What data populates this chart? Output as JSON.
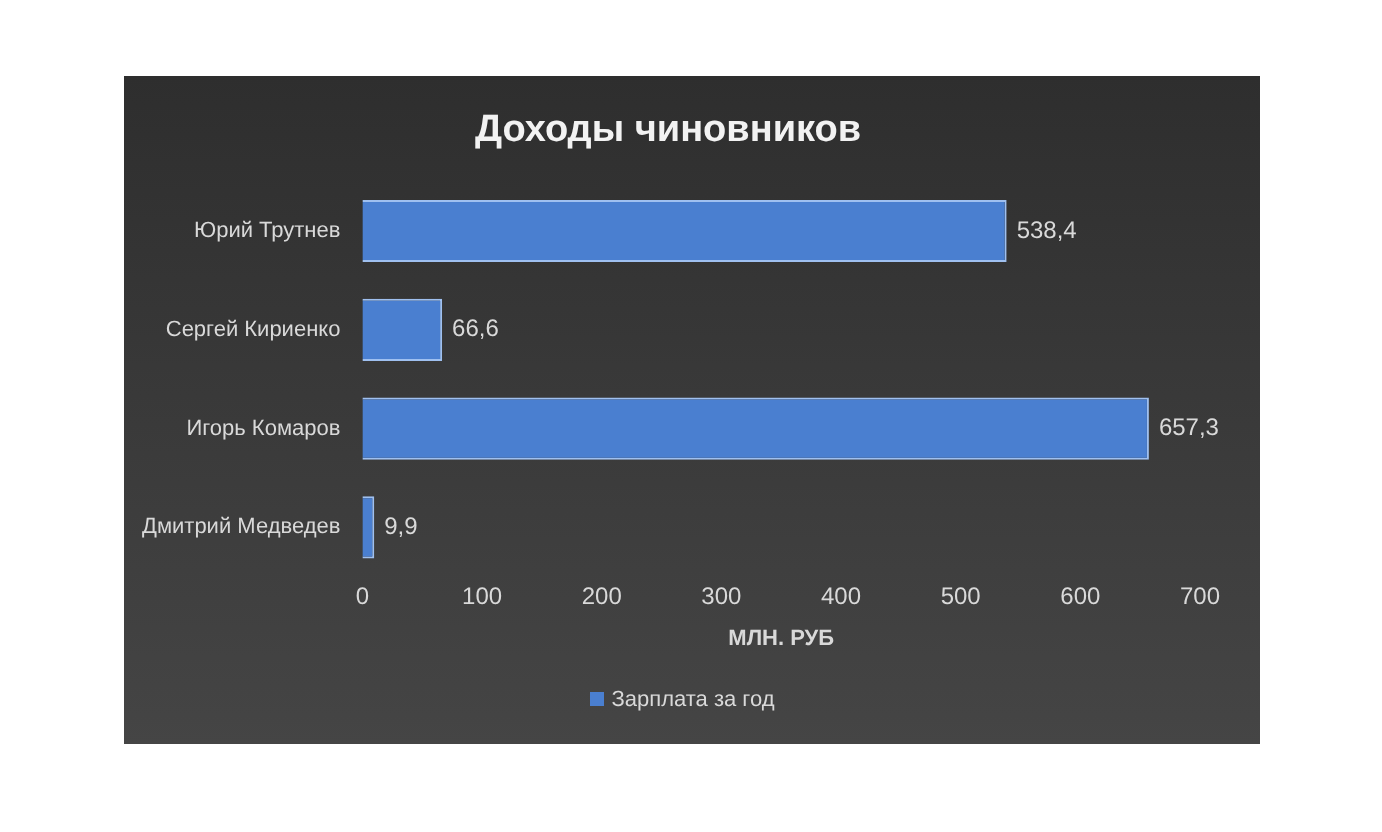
{
  "chart_data": {
    "type": "bar",
    "orientation": "horizontal",
    "title": "Доходы чиновников",
    "xlabel": "МЛН. РУБ",
    "categories": [
      "Юрий Трутнев",
      "Сергей Кириенко",
      "Игорь Комаров",
      "Дмитрий Медведев"
    ],
    "series": [
      {
        "name": "Зарплата за год",
        "color": "#4a7fd0",
        "values": [
          538.4,
          66.6,
          657.3,
          9.9
        ],
        "value_labels": [
          "538,4",
          "66,6",
          "657,3",
          "9,9"
        ]
      }
    ],
    "xlim": [
      0,
      700
    ],
    "xticks": [
      0,
      100,
      200,
      300,
      400,
      500,
      600,
      700
    ],
    "grid": false,
    "legend": "bottom"
  }
}
